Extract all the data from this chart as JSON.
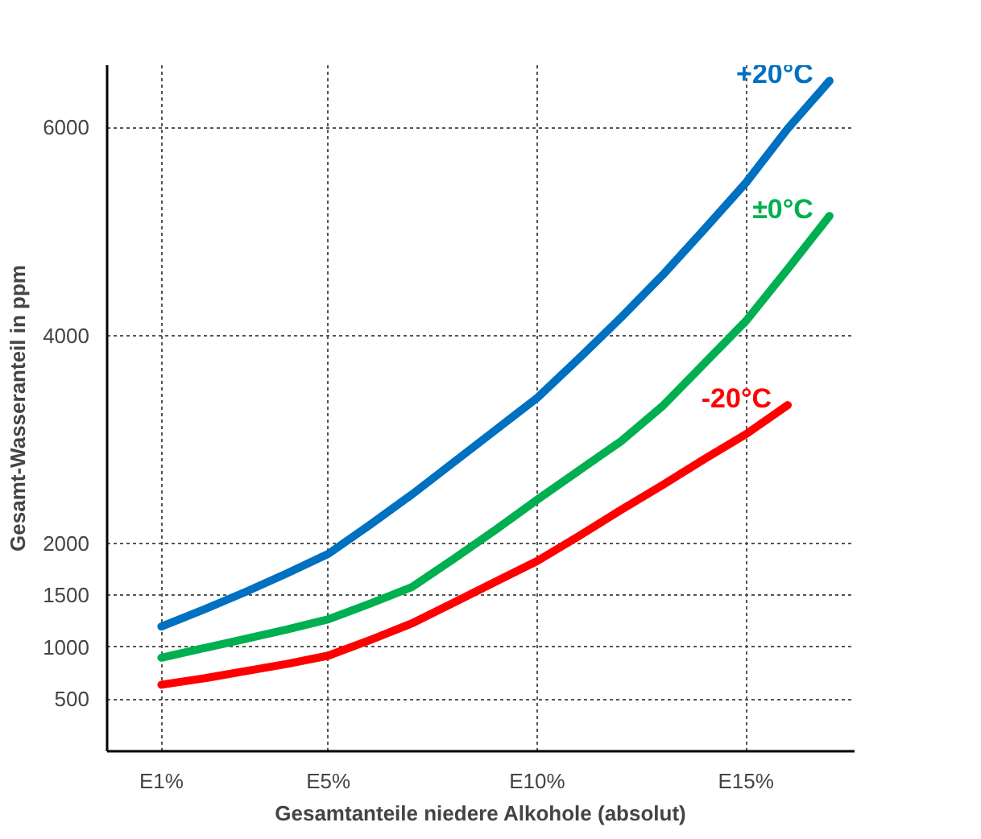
{
  "chart_data": {
    "type": "line",
    "xlabel": "Gesamtanteile niedere Alkohole (absolut)",
    "ylabel": "Gesamt-Wasseranteil in ppm",
    "categories": [
      "E1%",
      null,
      null,
      null,
      "E5%",
      null,
      null,
      null,
      null,
      "E10%",
      null,
      null,
      null,
      null,
      "E15%",
      null,
      null
    ],
    "ylim": [
      0,
      6600
    ],
    "yticks": [
      500,
      1000,
      1500,
      2000,
      4000,
      6000
    ],
    "grid": true,
    "line_style": "solid",
    "series": [
      {
        "name": "+20°C",
        "color": "#0070c0",
        "values": [
          1200,
          1360,
          1530,
          1710,
          1900,
          2180,
          2470,
          2780,
          3090,
          3400,
          3780,
          4170,
          4580,
          5020,
          5470,
          5990,
          6450
        ]
      },
      {
        "name": "±0°C",
        "color": "#00b050",
        "values": [
          900,
          990,
          1080,
          1170,
          1270,
          1420,
          1580,
          1850,
          2130,
          2420,
          2700,
          2980,
          3320,
          3730,
          4140,
          4640,
          5150
        ]
      },
      {
        "name": "-20°C",
        "color": "#ff0000",
        "values": [
          640,
          700,
          770,
          840,
          920,
          1070,
          1230,
          1430,
          1630,
          1830,
          2070,
          2320,
          2560,
          2810,
          3050,
          3330,
          null
        ]
      }
    ]
  }
}
